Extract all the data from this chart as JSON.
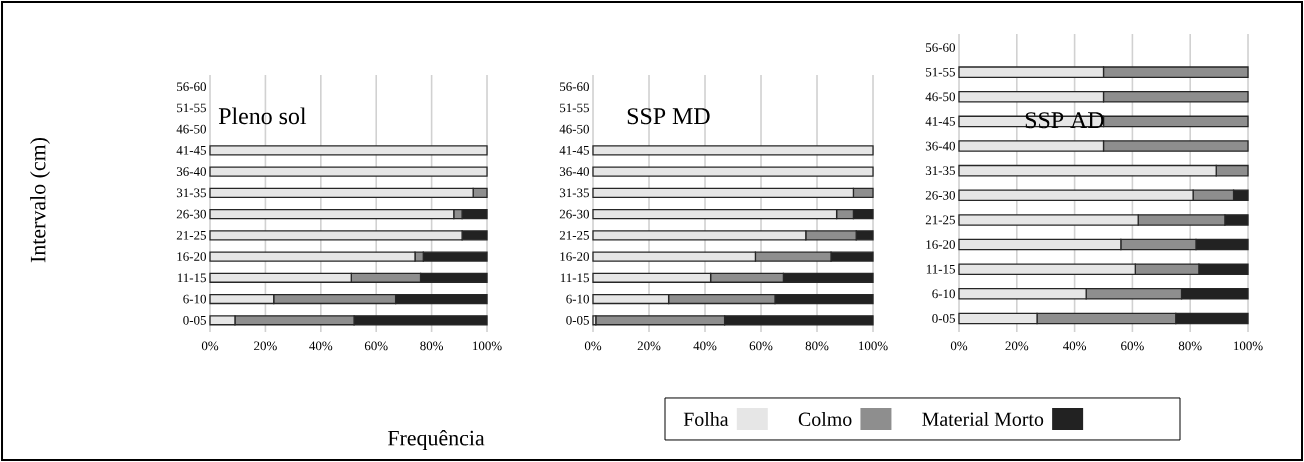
{
  "chart_data": [
    {
      "type": "bar",
      "orientation": "horizontal",
      "stacked": true,
      "title": "Pleno sol",
      "ylabel": "Intervalo (cm)",
      "xlabel": "Frequência",
      "grid": "x",
      "categories": [
        "56-60",
        "51-55",
        "46-50",
        "41-45",
        "36-40",
        "31-35",
        "26-30",
        "21-25",
        "16-20",
        "11-15",
        "6-10",
        "0-05"
      ],
      "xlim": [
        0,
        100
      ],
      "xticks": [
        {
          "value": 0,
          "label": "0%"
        },
        {
          "value": 20,
          "label": "20%"
        },
        {
          "value": 40,
          "label": "40%"
        },
        {
          "value": 60,
          "label": "60%"
        },
        {
          "value": 80,
          "label": "80%"
        },
        {
          "value": 100,
          "label": "100%"
        }
      ],
      "series": [
        {
          "color": "#e6e6e6",
          "values": [
            null,
            null,
            null,
            100,
            100,
            95,
            88,
            91,
            74,
            51,
            23,
            9
          ]
        },
        {
          "color": "#8e8e8e",
          "values": [
            null,
            null,
            null,
            0,
            0,
            5,
            3,
            0,
            3,
            25,
            44,
            43
          ]
        },
        {
          "color": "#222222",
          "values": [
            null,
            null,
            null,
            0,
            0,
            0,
            9,
            9,
            23,
            24,
            33,
            48
          ]
        }
      ]
    },
    {
      "type": "bar",
      "orientation": "horizontal",
      "stacked": true,
      "title": "SSP MD",
      "grid": "x",
      "legend": "bottom",
      "categories": [
        "56-60",
        "51-55",
        "46-50",
        "41-45",
        "36-40",
        "31-35",
        "26-30",
        "21-25",
        "16-20",
        "11-15",
        "6-10",
        "0-05"
      ],
      "xlim": [
        0,
        100
      ],
      "xticks": [
        {
          "value": 0,
          "label": "0%"
        },
        {
          "value": 20,
          "label": "20%"
        },
        {
          "value": 40,
          "label": "40%"
        },
        {
          "value": 60,
          "label": "60%"
        },
        {
          "value": 80,
          "label": "80%"
        },
        {
          "value": 100,
          "label": "100%"
        }
      ],
      "series": [
        {
          "name": "Folha",
          "color": "#e6e6e6",
          "values": [
            null,
            null,
            null,
            100,
            100,
            93,
            87,
            76,
            58,
            42,
            27,
            1
          ]
        },
        {
          "name": "Colmo",
          "color": "#8e8e8e",
          "values": [
            null,
            null,
            null,
            0,
            0,
            7,
            6,
            18,
            27,
            26,
            38,
            46
          ]
        },
        {
          "name": "Material Morto",
          "color": "#222222",
          "values": [
            null,
            null,
            null,
            0,
            0,
            0,
            7,
            6,
            15,
            32,
            35,
            53
          ]
        }
      ]
    },
    {
      "type": "bar",
      "orientation": "horizontal",
      "stacked": true,
      "title": "SSP AD",
      "grid": "x",
      "categories": [
        "56-60",
        "51-55",
        "46-50",
        "41-45",
        "36-40",
        "31-35",
        "26-30",
        "21-25",
        "16-20",
        "11-15",
        "6-10",
        "0-05"
      ],
      "xlim": [
        0,
        100
      ],
      "xticks": [
        {
          "value": 0,
          "label": "0%"
        },
        {
          "value": 20,
          "label": "20%"
        },
        {
          "value": 40,
          "label": "40%"
        },
        {
          "value": 60,
          "label": "60%"
        },
        {
          "value": 80,
          "label": "80%"
        },
        {
          "value": 100,
          "label": "100%"
        }
      ],
      "series": [
        {
          "color": "#e6e6e6",
          "values": [
            null,
            50,
            50,
            50,
            50,
            89,
            81,
            62,
            56,
            61,
            44,
            27
          ]
        },
        {
          "color": "#8e8e8e",
          "values": [
            null,
            50,
            50,
            50,
            50,
            11,
            14,
            30,
            26,
            22,
            33,
            48
          ]
        },
        {
          "color": "#222222",
          "values": [
            null,
            0,
            0,
            0,
            0,
            0,
            5,
            8,
            18,
            17,
            23,
            25
          ]
        }
      ]
    }
  ]
}
